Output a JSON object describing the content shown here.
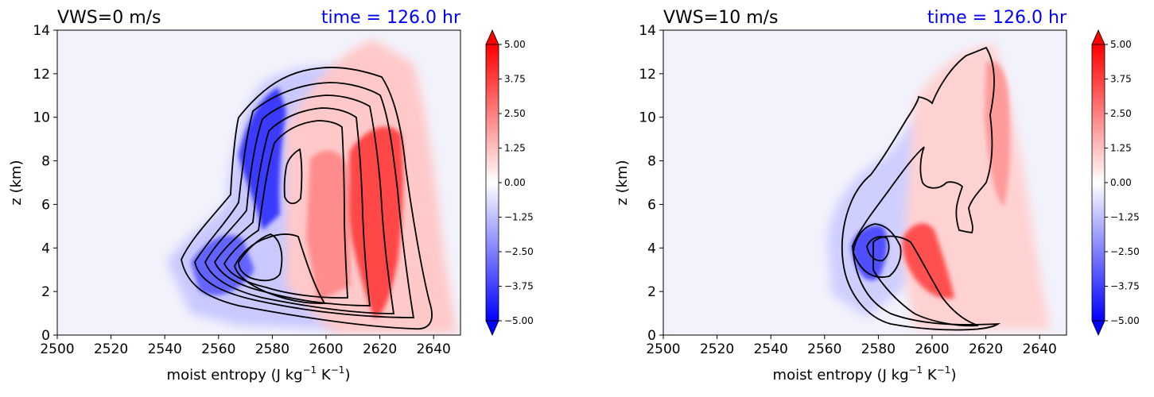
{
  "chart_data": [
    {
      "type": "heatmap",
      "title_left": "VWS=0 m/s",
      "title_right": "time = 126.0 hr",
      "title_right_color": "#0000ff",
      "xlabel": "moist entropy (J kg",
      "xlabel_sup1": "−1",
      "xlabel_mid": " K",
      "xlabel_sup2": "−1",
      "xlabel_end": ")",
      "ylabel": "z (km)",
      "xlim": [
        2500,
        2650
      ],
      "ylim": [
        0,
        14
      ],
      "xticks": [
        2500,
        2520,
        2540,
        2560,
        2580,
        2600,
        2620,
        2640
      ],
      "yticks": [
        0,
        2,
        4,
        6,
        8,
        10,
        12,
        14
      ],
      "colorbar": {
        "range": [
          -5,
          5
        ],
        "ticks": [
          "−5.00",
          "−3.75",
          "−2.50",
          "−1.25",
          "0.00",
          "1.25",
          "2.50",
          "3.75",
          "5.00"
        ],
        "extend": "both",
        "cmap": "bwr"
      },
      "background_color": "#f2f2fc"
    },
    {
      "type": "heatmap",
      "title_left": "VWS=10 m/s",
      "title_right": "time = 126.0 hr",
      "title_right_color": "#0000ff",
      "xlabel": "moist entropy (J kg",
      "xlabel_sup1": "−1",
      "xlabel_mid": " K",
      "xlabel_sup2": "−1",
      "xlabel_end": ")",
      "ylabel": "z (km)",
      "xlim": [
        2500,
        2650
      ],
      "ylim": [
        0,
        14
      ],
      "xticks": [
        2500,
        2520,
        2540,
        2560,
        2580,
        2600,
        2620,
        2640
      ],
      "yticks": [
        0,
        2,
        4,
        6,
        8,
        10,
        12,
        14
      ],
      "colorbar": {
        "range": [
          -5,
          5
        ],
        "ticks": [
          "−5.00",
          "−3.75",
          "−2.50",
          "−1.25",
          "0.00",
          "1.25",
          "2.50",
          "3.75",
          "5.00"
        ],
        "extend": "both",
        "cmap": "bwr"
      },
      "background_color": "#f2f2fc"
    }
  ]
}
